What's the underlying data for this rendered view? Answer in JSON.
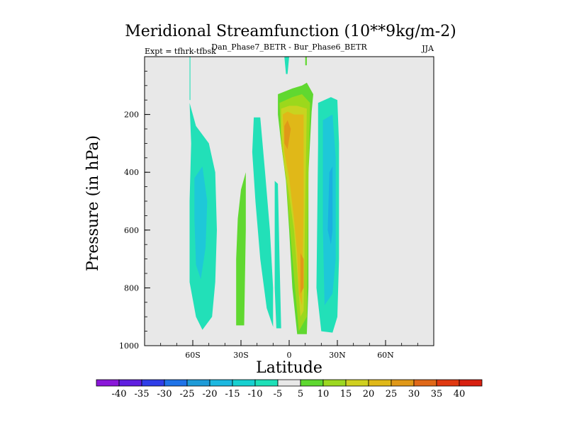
{
  "chart_data": {
    "type": "contour",
    "title": "Meridional Streamfunction (10**9kg/m-2)",
    "subtitle": "Dan_Phase7_BETR - Bur_Phase6_BETR",
    "left_note": "Expt = tfhrk-tfbsk",
    "season": "JJA",
    "xlabel": "Latitude",
    "ylabel": "Pressure (in hPa)",
    "xlim": [
      -90,
      90
    ],
    "ylim": [
      1000,
      0
    ],
    "x_ticks": [
      {
        "value": -60,
        "label": "60S"
      },
      {
        "value": -30,
        "label": "30S"
      },
      {
        "value": 0,
        "label": "0"
      },
      {
        "value": 30,
        "label": "30N"
      },
      {
        "value": 60,
        "label": "60N"
      }
    ],
    "y_ticks": [
      {
        "value": 200,
        "label": "200"
      },
      {
        "value": 400,
        "label": "400"
      },
      {
        "value": 600,
        "label": "600"
      },
      {
        "value": 800,
        "label": "800"
      },
      {
        "value": 1000,
        "label": "1000"
      }
    ],
    "colorbar": {
      "labels": [
        "-40",
        "-35",
        "-30",
        "-25",
        "-20",
        "-15",
        "-10",
        "-5",
        "5",
        "10",
        "15",
        "20",
        "25",
        "30",
        "35",
        "40"
      ],
      "colors": [
        "#8a17d9",
        "#5f1fe0",
        "#2f3ee8",
        "#1f73e8",
        "#1e9bd8",
        "#1cb8e0",
        "#17d0d0",
        "#1ee0b8",
        "#e8e8e8",
        "#5ed830",
        "#9cd820",
        "#d0d020",
        "#e0b818",
        "#e09818",
        "#e06818",
        "#e03810",
        "#d82010"
      ]
    },
    "fields": [
      {
        "name": "sh-cell-negative",
        "level": -5,
        "polygon": [
          [
            -62,
            30
          ],
          [
            -62,
            160
          ],
          [
            -58,
            240
          ],
          [
            -50,
            300
          ],
          [
            -46,
            400
          ],
          [
            -45,
            600
          ],
          [
            -46,
            780
          ],
          [
            -48,
            900
          ],
          [
            -54,
            945
          ],
          [
            -58,
            900
          ],
          [
            -62,
            780
          ],
          [
            -62,
            500
          ],
          [
            -61,
            300
          ],
          [
            -62,
            160
          ]
        ]
      },
      {
        "name": "sh-cell-negative-core",
        "level": -10,
        "polygon": [
          [
            -59,
            420
          ],
          [
            -54,
            380
          ],
          [
            -51,
            500
          ],
          [
            -52,
            660
          ],
          [
            -55,
            770
          ],
          [
            -58,
            720
          ],
          [
            -59,
            560
          ]
        ]
      },
      {
        "name": "sh-subtropic-negative",
        "level": -5,
        "polygon": [
          [
            -22,
            210
          ],
          [
            -18,
            210
          ],
          [
            -15,
            400
          ],
          [
            -12,
            600
          ],
          [
            -10,
            800
          ],
          [
            -10,
            935
          ],
          [
            -14,
            870
          ],
          [
            -18,
            700
          ],
          [
            -21,
            500
          ],
          [
            -23,
            330
          ]
        ]
      },
      {
        "name": "sh-subtropic-positive",
        "level": 5,
        "polygon": [
          [
            -30,
            460
          ],
          [
            -27,
            400
          ],
          [
            -27,
            600
          ],
          [
            -28,
            930
          ],
          [
            -33,
            930
          ],
          [
            -33,
            700
          ],
          [
            -32,
            560
          ]
        ]
      },
      {
        "name": "near-equator-negative",
        "level": -5,
        "polygon": [
          [
            -9,
            430
          ],
          [
            -7,
            440
          ],
          [
            -6,
            700
          ],
          [
            -5,
            940
          ],
          [
            -8,
            940
          ],
          [
            -9,
            800
          ]
        ]
      },
      {
        "name": "top-negative-strip",
        "level": -5,
        "polygon": [
          [
            -3,
            0
          ],
          [
            0,
            0
          ],
          [
            -1,
            60
          ],
          [
            -2,
            60
          ]
        ]
      },
      {
        "name": "equator-positive",
        "level": 5,
        "polygon": [
          [
            -7,
            130
          ],
          [
            2,
            110
          ],
          [
            8,
            100
          ],
          [
            11,
            90
          ],
          [
            15,
            130
          ],
          [
            14,
            190
          ],
          [
            12,
            400
          ],
          [
            12,
            800
          ],
          [
            11,
            960
          ],
          [
            5,
            960
          ],
          [
            2,
            800
          ],
          [
            0,
            600
          ],
          [
            -2,
            430
          ],
          [
            -5,
            300
          ],
          [
            -7,
            200
          ]
        ]
      },
      {
        "name": "equator-positive-10",
        "level": 10,
        "polygon": [
          [
            -6,
            160
          ],
          [
            2,
            140
          ],
          [
            8,
            130
          ],
          [
            13,
            160
          ],
          [
            12,
            400
          ],
          [
            11,
            900
          ],
          [
            6,
            950
          ],
          [
            3,
            760
          ],
          [
            0,
            560
          ],
          [
            -2,
            420
          ],
          [
            -5,
            300
          ]
        ]
      },
      {
        "name": "equator-positive-15",
        "level": 15,
        "polygon": [
          [
            -5,
            180
          ],
          [
            0,
            170
          ],
          [
            5,
            170
          ],
          [
            11,
            180
          ],
          [
            10,
            500
          ],
          [
            9,
            880
          ],
          [
            7,
            900
          ],
          [
            5,
            740
          ],
          [
            3,
            600
          ],
          [
            0,
            480
          ],
          [
            -3,
            380
          ],
          [
            -5,
            260
          ]
        ]
      },
      {
        "name": "equator-positive-20",
        "level": 20,
        "polygon": [
          [
            -4,
            200
          ],
          [
            -1,
            190
          ],
          [
            3,
            200
          ],
          [
            9,
            200
          ],
          [
            9,
            520
          ],
          [
            8,
            860
          ],
          [
            6,
            820
          ],
          [
            5,
            680
          ],
          [
            3,
            560
          ],
          [
            0,
            420
          ],
          [
            -3,
            330
          ]
        ]
      },
      {
        "name": "equator-positive-25",
        "level": 25,
        "polygon": [
          [
            -3,
            240
          ],
          [
            -1,
            220
          ],
          [
            1,
            250
          ],
          [
            -1,
            320
          ],
          [
            -3,
            300
          ]
        ]
      },
      {
        "name": "equator-positive-25b",
        "level": 25,
        "polygon": [
          [
            7,
            680
          ],
          [
            9,
            700
          ],
          [
            9,
            800
          ],
          [
            7,
            820
          ]
        ]
      },
      {
        "name": "nh-cell-negative",
        "level": -5,
        "polygon": [
          [
            18,
            160
          ],
          [
            26,
            140
          ],
          [
            30,
            150
          ],
          [
            31,
            300
          ],
          [
            31,
            700
          ],
          [
            30,
            900
          ],
          [
            27,
            955
          ],
          [
            20,
            950
          ],
          [
            17,
            800
          ],
          [
            18,
            300
          ]
        ]
      },
      {
        "name": "nh-cell-negative-core",
        "level": -10,
        "polygon": [
          [
            21,
            220
          ],
          [
            27,
            200
          ],
          [
            29,
            350
          ],
          [
            29,
            700
          ],
          [
            27,
            820
          ],
          [
            22,
            860
          ],
          [
            21,
            600
          ]
        ]
      },
      {
        "name": "nh-cell-negative-15",
        "level": -15,
        "polygon": [
          [
            25,
            400
          ],
          [
            27,
            380
          ],
          [
            27,
            600
          ],
          [
            26,
            650
          ],
          [
            24,
            600
          ]
        ]
      },
      {
        "name": "top-positive-strip",
        "level": 5,
        "polygon": [
          [
            10,
            0
          ],
          [
            11,
            0
          ],
          [
            11,
            30
          ],
          [
            10,
            30
          ]
        ]
      },
      {
        "name": "sh-top-strip",
        "level": -5,
        "polygon": [
          [
            -62,
            0
          ],
          [
            -61.5,
            0
          ],
          [
            -61.5,
            150
          ],
          [
            -62,
            150
          ]
        ]
      }
    ]
  }
}
